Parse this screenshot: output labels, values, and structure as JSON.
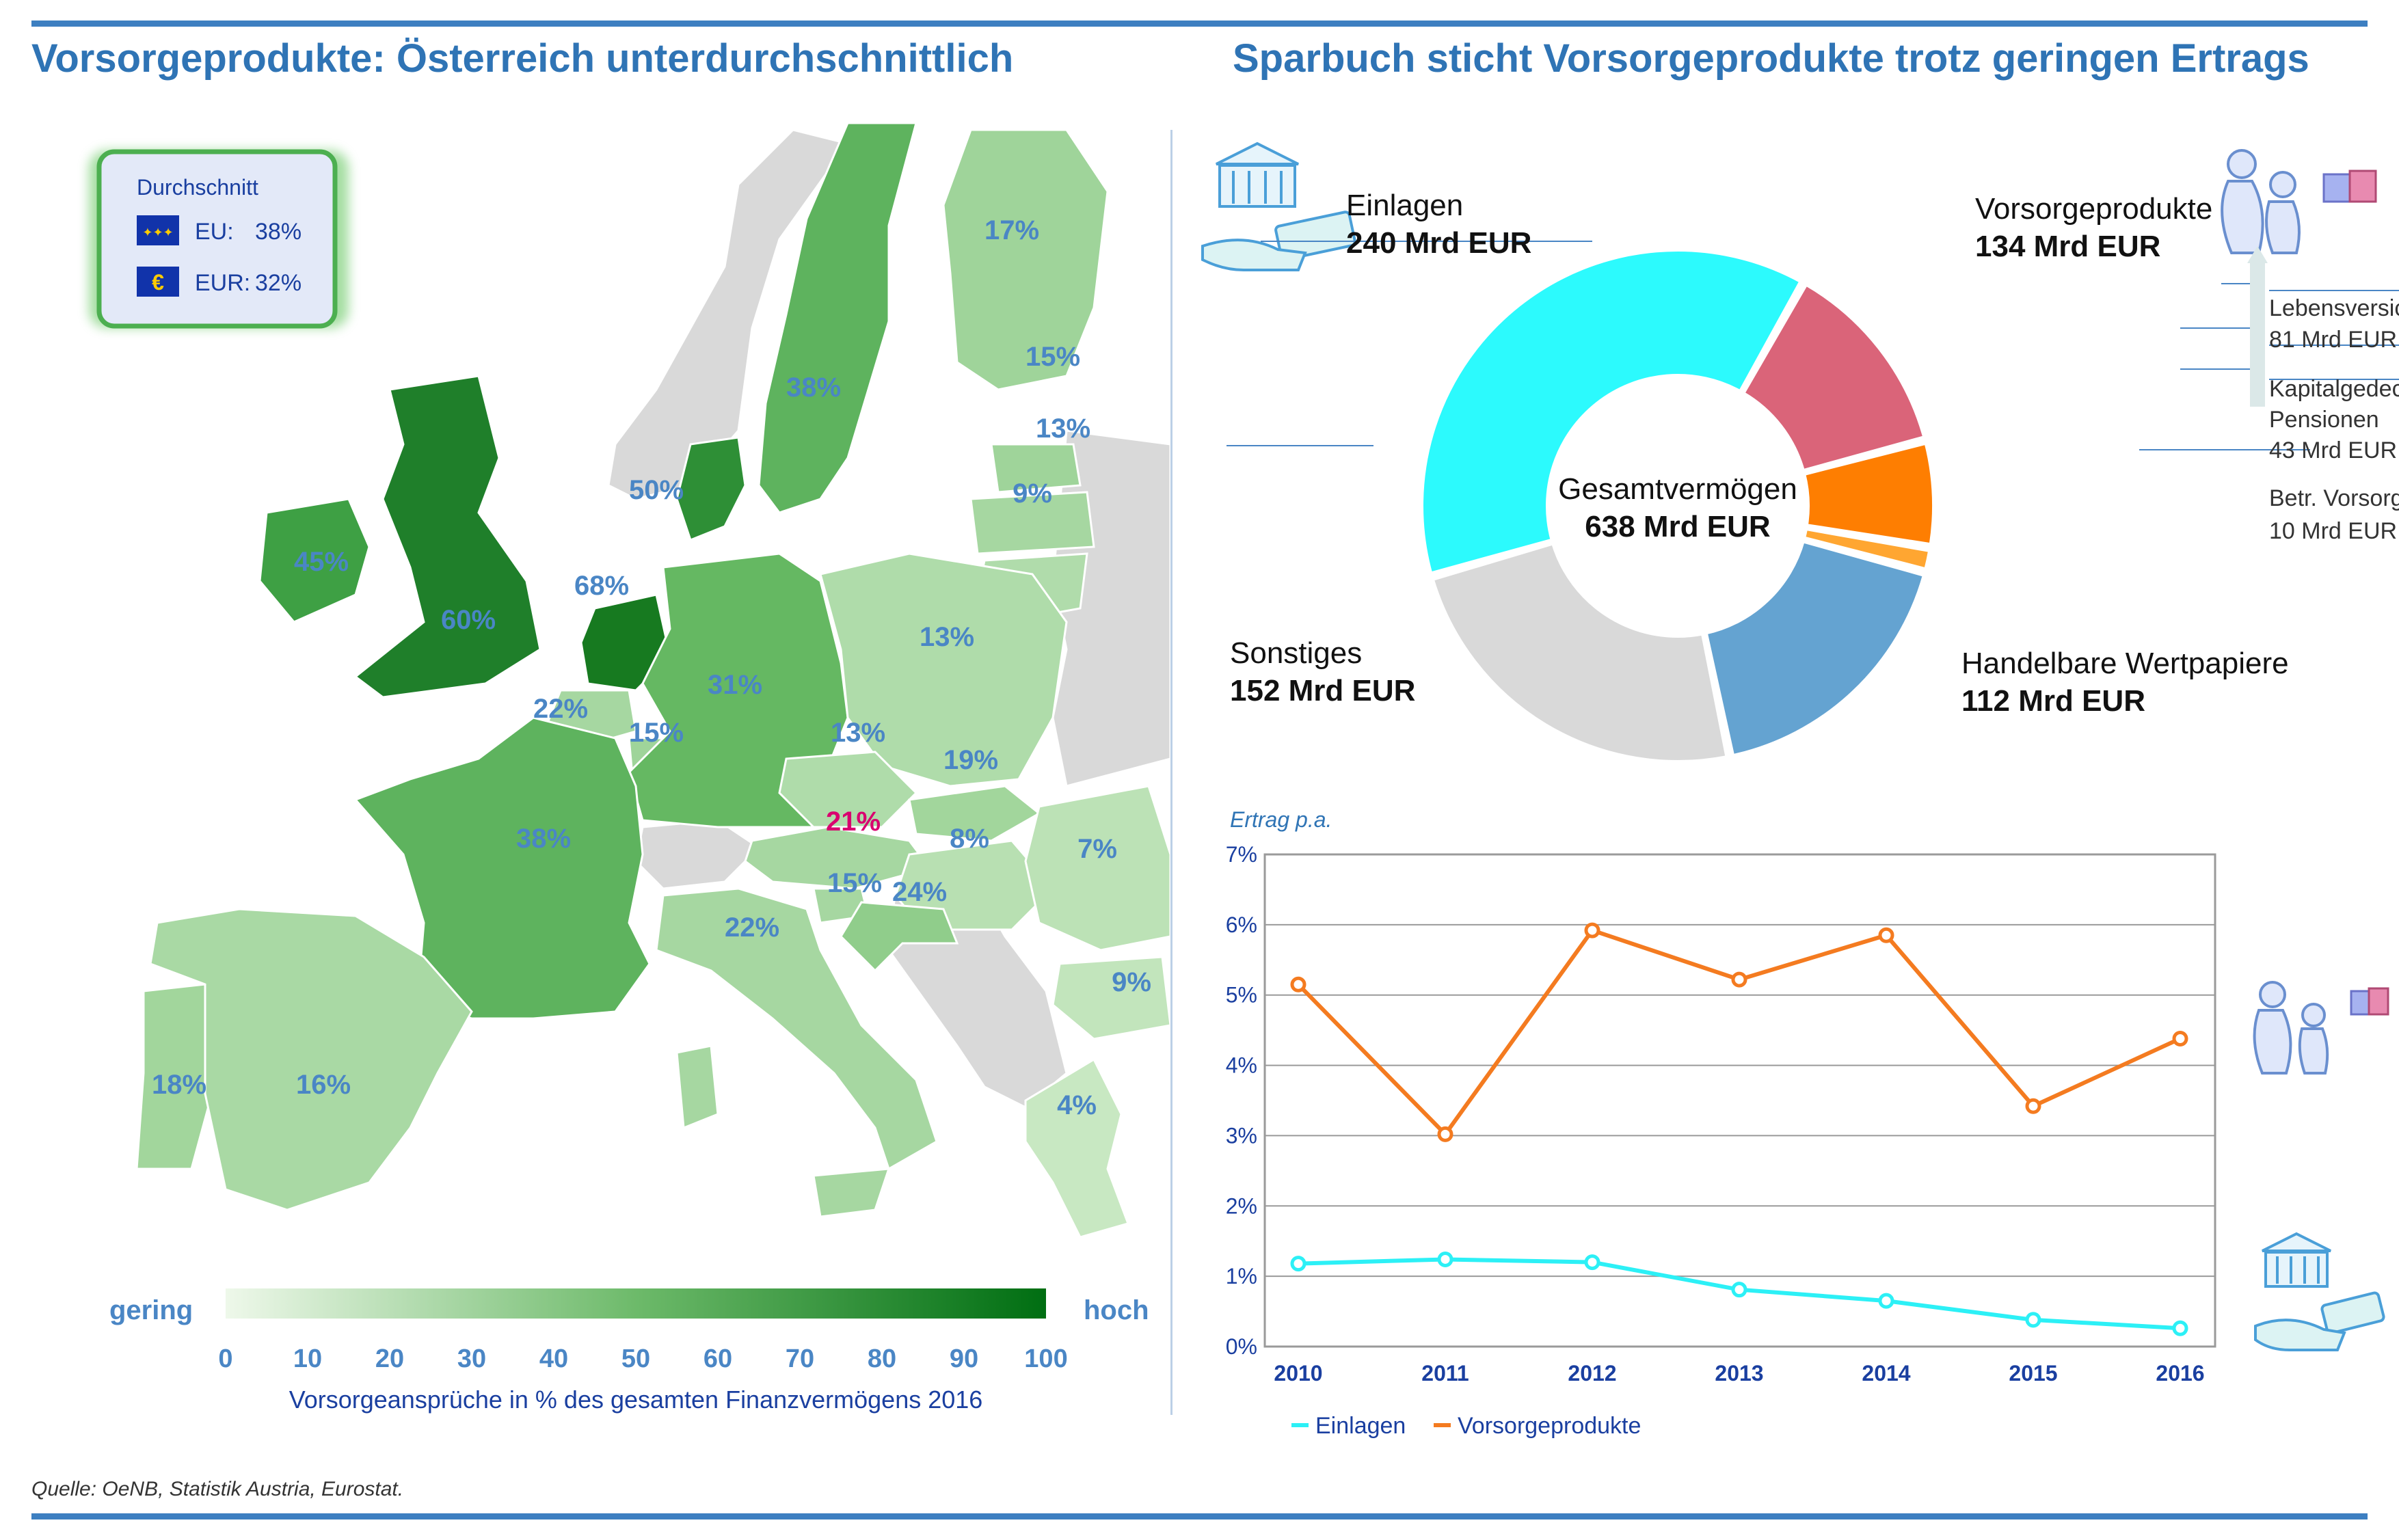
{
  "header": {
    "left_title": "Vorsorgeprodukte: Österreich unterdurchschnittlich",
    "right_title": "Sparbuch sticht Vorsorgeprodukte trotz geringen Ertrags"
  },
  "legend_box": {
    "title": "Durchschnitt",
    "eu_label": "EU:",
    "eu_value": "38%",
    "eur_label": "EUR:",
    "eur_value": "32%"
  },
  "map": {
    "scale_low": "gering",
    "scale_high": "hoch",
    "scale_ticks": [
      "0",
      "10",
      "20",
      "30",
      "40",
      "50",
      "60",
      "70",
      "80",
      "90",
      "100"
    ],
    "scale_caption": "Vorsorgeansprüche in % des gesamten Finanzvermögens 2016",
    "colors": {
      "low": "#e8f5e3",
      "high": "#006e12",
      "no_data": "#d9d9d9",
      "label": "#4a86c5",
      "highlight": "#d9006f"
    },
    "countries": [
      {
        "name": "Finnland",
        "value": 17,
        "label": "17%"
      },
      {
        "name": "Schweden",
        "value": 38,
        "label": "38%"
      },
      {
        "name": "Estland",
        "value": 15,
        "label": "15%"
      },
      {
        "name": "Lettland",
        "value": 13,
        "label": "13%"
      },
      {
        "name": "Litauen",
        "value": 9,
        "label": "9%"
      },
      {
        "name": "Dänemark",
        "value": 50,
        "label": "50%"
      },
      {
        "name": "Irland",
        "value": 45,
        "label": "45%"
      },
      {
        "name": "Vereinigtes Königreich",
        "value": 60,
        "label": "60%"
      },
      {
        "name": "Niederlande",
        "value": 68,
        "label": "68%"
      },
      {
        "name": "Belgien",
        "value": 22,
        "label": "22%"
      },
      {
        "name": "Luxemburg",
        "value": 15,
        "label": "15%"
      },
      {
        "name": "Deutschland",
        "value": 31,
        "label": "31%"
      },
      {
        "name": "Polen",
        "value": 13,
        "label": "13%"
      },
      {
        "name": "Tschechien",
        "value": 13,
        "label": "13%"
      },
      {
        "name": "Slowakei",
        "value": 19,
        "label": "19%"
      },
      {
        "name": "Österreich",
        "value": 21,
        "label": "21%",
        "highlight": true
      },
      {
        "name": "Ungarn",
        "value": 8,
        "label": "8%"
      },
      {
        "name": "Rumänien",
        "value": 7,
        "label": "7%"
      },
      {
        "name": "Frankreich",
        "value": 38,
        "label": "38%"
      },
      {
        "name": "Slowenien",
        "value": 15,
        "label": "15%"
      },
      {
        "name": "Kroatien",
        "value": 24,
        "label": "24%"
      },
      {
        "name": "Italien",
        "value": 22,
        "label": "22%"
      },
      {
        "name": "Bulgarien",
        "value": 9,
        "label": "9%"
      },
      {
        "name": "Griechenland",
        "value": 4,
        "label": "4%"
      },
      {
        "name": "Portugal",
        "value": 18,
        "label": "18%"
      },
      {
        "name": "Spanien",
        "value": 16,
        "label": "16%"
      }
    ]
  },
  "donut": {
    "center_label": "Gesamtvermögen",
    "center_value": "638 Mrd EUR",
    "einlagen": {
      "name": "Einlagen",
      "value_text": "240 Mrd EUR"
    },
    "vorsorge": {
      "name": "Vorsorgeprodukte",
      "value_text": "134 Mrd EUR"
    },
    "sonstiges": {
      "name": "Sonstiges",
      "value_text": "152 Mrd EUR"
    },
    "handelbar": {
      "name": "Handelbare Wertpapiere",
      "value_text": "112 Mrd EUR"
    },
    "sub": {
      "leben_name": "Lebensversicherungen",
      "leben_value": "81 Mrd EUR",
      "kapital_name_1": "Kapitalgedeckte",
      "kapital_name_2": "Pensionen",
      "kapital_value": "43 Mrd EUR",
      "betr_name": "Betr. Vorsorgekassen",
      "betr_value": "10 Mrd EUR"
    }
  },
  "line": {
    "ylabel": "Ertrag p.a.",
    "legend_einlagen": "Einlagen",
    "legend_vorsorge": "Vorsorgeprodukte"
  },
  "source": "Quelle: OeNB, Statistik Austria, Eurostat.",
  "chart_data": [
    {
      "type": "pie",
      "title": "Sparbuch sticht Vorsorgeprodukte trotz geringen Ertrags",
      "total": 638,
      "unit": "Mrd EUR",
      "categories": [
        "Einlagen",
        "Lebensversicherungen",
        "Kapitalgedeckte Pensionen",
        "Betr. Vorsorgekassen",
        "Handelbare Wertpapiere",
        "Sonstiges"
      ],
      "values": [
        240,
        81,
        43,
        10,
        112,
        152
      ],
      "colors": [
        "#2cfafd",
        "#da6479",
        "#fe7e01",
        "#ffa631",
        "#64a3d1",
        "#d9d9d9"
      ]
    },
    {
      "type": "line",
      "ylabel": "Ertrag p.a.",
      "x": [
        2010,
        2011,
        2012,
        2013,
        2014,
        2015,
        2016
      ],
      "yticks": [
        "0%",
        "1%",
        "2%",
        "3%",
        "4%",
        "5%",
        "6%",
        "7%"
      ],
      "ylim": [
        0,
        7
      ],
      "grid": true,
      "legend": "bottom",
      "series": [
        {
          "name": "Einlagen",
          "color": "#2cf0f6",
          "values": [
            1.18,
            1.24,
            1.2,
            0.81,
            0.65,
            0.38,
            0.26
          ]
        },
        {
          "name": "Vorsorgeprodukte",
          "color": "#f47b20",
          "values": [
            5.15,
            3.02,
            5.92,
            5.22,
            5.85,
            3.42,
            4.38
          ]
        }
      ]
    }
  ]
}
